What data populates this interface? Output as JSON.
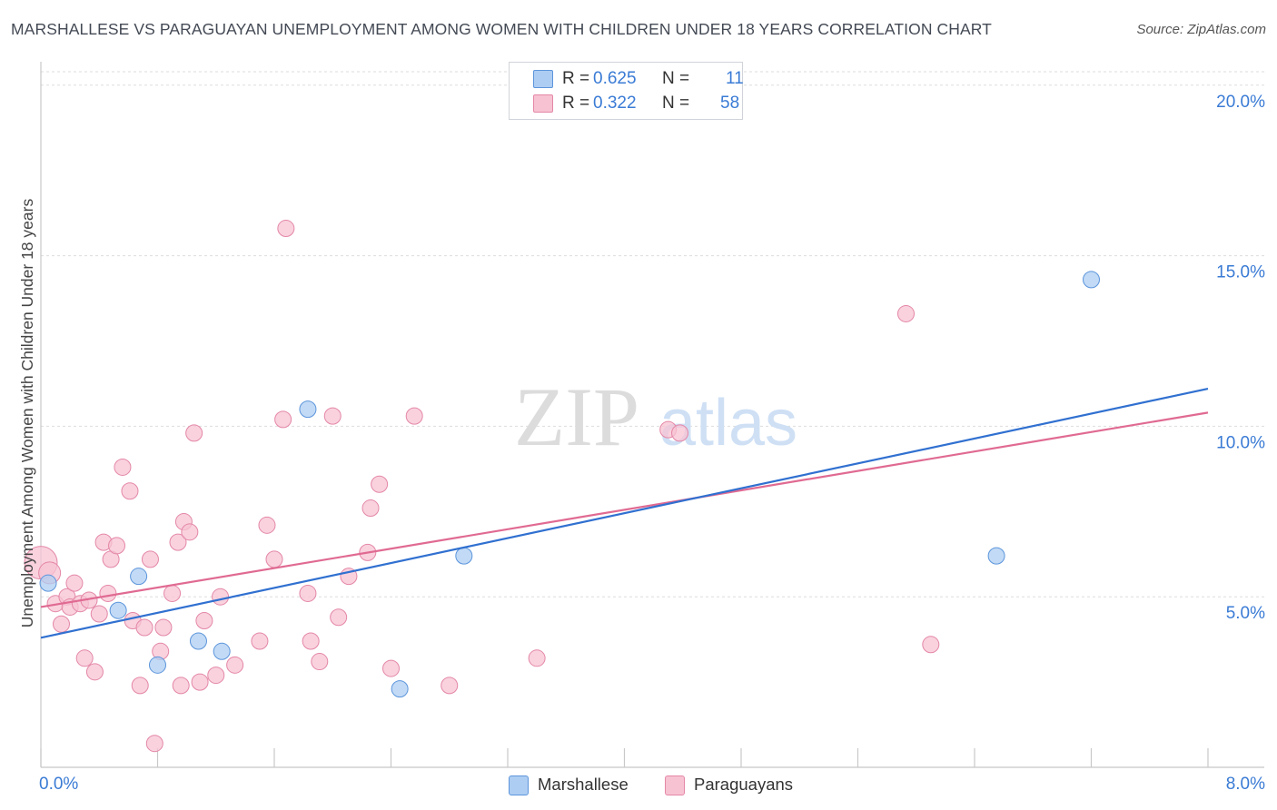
{
  "header": {
    "title": "MARSHALLESE VS PARAGUAYAN UNEMPLOYMENT AMONG WOMEN WITH CHILDREN UNDER 18 YEARS CORRELATION CHART",
    "source": "Source: ZipAtlas.com"
  },
  "watermark": {
    "zip": "ZIP",
    "atlas": "atlas"
  },
  "legend": {
    "rows": [
      {
        "r_label": "R = ",
        "r_value": "0.625",
        "n_label": "N = ",
        "n_value": "11",
        "series": "Marshallese"
      },
      {
        "r_label": "R = ",
        "r_value": "0.322",
        "n_label": "N = ",
        "n_value": "58",
        "series": "Paraguayans"
      }
    ]
  },
  "bottom_legend": {
    "items": [
      "Marshallese",
      "Paraguayans"
    ]
  },
  "colors": {
    "marshallese_fill": "#aecdf2",
    "marshallese_stroke": "#5c95dc",
    "marshallese_line": "#3070d0",
    "paraguayan_fill": "#f7c3d3",
    "paraguayan_stroke": "#e487a6",
    "paraguayan_line": "#e06a92",
    "axis_label": "#3a7bd5",
    "grid": "#dddddd"
  },
  "chart_data": {
    "type": "scatter",
    "title": "MARSHALLESE VS PARAGUAYAN UNEMPLOYMENT AMONG WOMEN WITH CHILDREN UNDER 18 YEARS CORRELATION CHART",
    "xlabel": "",
    "ylabel": "Unemployment Among Women with Children Under 18 years",
    "xlim": [
      0,
      8
    ],
    "ylim": [
      0,
      20.5
    ],
    "x_tick_labels": [
      "0.0%",
      "8.0%"
    ],
    "y_ticks": [
      5,
      10,
      15,
      20
    ],
    "y_tick_labels": [
      "5.0%",
      "10.0%",
      "15.0%",
      "20.0%"
    ],
    "grid": true,
    "series": [
      {
        "name": "Marshallese",
        "r": 0.625,
        "n": 11,
        "trend": {
          "x": [
            0,
            8
          ],
          "y": [
            3.8,
            11.1
          ]
        },
        "points": [
          {
            "x": 0.05,
            "y": 5.4
          },
          {
            "x": 0.53,
            "y": 4.6
          },
          {
            "x": 0.67,
            "y": 5.6
          },
          {
            "x": 0.8,
            "y": 3.0
          },
          {
            "x": 1.08,
            "y": 3.7
          },
          {
            "x": 1.24,
            "y": 3.4
          },
          {
            "x": 1.83,
            "y": 10.5
          },
          {
            "x": 2.46,
            "y": 2.3
          },
          {
            "x": 2.9,
            "y": 6.2
          },
          {
            "x": 6.55,
            "y": 6.2
          },
          {
            "x": 7.2,
            "y": 14.3
          }
        ]
      },
      {
        "name": "Paraguayans",
        "r": 0.322,
        "n": 58,
        "trend": {
          "x": [
            0,
            8
          ],
          "y": [
            4.7,
            10.4
          ]
        },
        "points": [
          {
            "x": 0.0,
            "y": 6.0
          },
          {
            "x": 0.06,
            "y": 5.7
          },
          {
            "x": 0.1,
            "y": 4.8
          },
          {
            "x": 0.14,
            "y": 4.2
          },
          {
            "x": 0.18,
            "y": 5.0
          },
          {
            "x": 0.2,
            "y": 4.7
          },
          {
            "x": 0.23,
            "y": 5.4
          },
          {
            "x": 0.27,
            "y": 4.8
          },
          {
            "x": 0.3,
            "y": 3.2
          },
          {
            "x": 0.33,
            "y": 4.9
          },
          {
            "x": 0.37,
            "y": 2.8
          },
          {
            "x": 0.4,
            "y": 4.5
          },
          {
            "x": 0.43,
            "y": 6.6
          },
          {
            "x": 0.46,
            "y": 5.1
          },
          {
            "x": 0.48,
            "y": 6.1
          },
          {
            "x": 0.52,
            "y": 6.5
          },
          {
            "x": 0.56,
            "y": 8.8
          },
          {
            "x": 0.61,
            "y": 8.1
          },
          {
            "x": 0.63,
            "y": 4.3
          },
          {
            "x": 0.68,
            "y": 2.4
          },
          {
            "x": 0.71,
            "y": 4.1
          },
          {
            "x": 0.75,
            "y": 6.1
          },
          {
            "x": 0.78,
            "y": 0.7
          },
          {
            "x": 0.82,
            "y": 3.4
          },
          {
            "x": 0.84,
            "y": 4.1
          },
          {
            "x": 0.9,
            "y": 5.1
          },
          {
            "x": 0.94,
            "y": 6.6
          },
          {
            "x": 0.96,
            "y": 2.4
          },
          {
            "x": 0.98,
            "y": 7.2
          },
          {
            "x": 1.02,
            "y": 6.9
          },
          {
            "x": 1.05,
            "y": 9.8
          },
          {
            "x": 1.09,
            "y": 2.5
          },
          {
            "x": 1.12,
            "y": 4.3
          },
          {
            "x": 1.2,
            "y": 2.7
          },
          {
            "x": 1.23,
            "y": 5.0
          },
          {
            "x": 1.33,
            "y": 3.0
          },
          {
            "x": 1.5,
            "y": 3.7
          },
          {
            "x": 1.55,
            "y": 7.1
          },
          {
            "x": 1.6,
            "y": 6.1
          },
          {
            "x": 1.66,
            "y": 10.2
          },
          {
            "x": 1.68,
            "y": 15.8
          },
          {
            "x": 1.83,
            "y": 5.1
          },
          {
            "x": 1.85,
            "y": 3.7
          },
          {
            "x": 1.91,
            "y": 3.1
          },
          {
            "x": 2.0,
            "y": 10.3
          },
          {
            "x": 2.04,
            "y": 4.4
          },
          {
            "x": 2.11,
            "y": 5.6
          },
          {
            "x": 2.24,
            "y": 6.3
          },
          {
            "x": 2.26,
            "y": 7.6
          },
          {
            "x": 2.32,
            "y": 8.3
          },
          {
            "x": 2.4,
            "y": 2.9
          },
          {
            "x": 2.56,
            "y": 10.3
          },
          {
            "x": 2.8,
            "y": 2.4
          },
          {
            "x": 3.4,
            "y": 3.2
          },
          {
            "x": 4.3,
            "y": 9.9
          },
          {
            "x": 4.38,
            "y": 9.8
          },
          {
            "x": 5.93,
            "y": 13.3
          },
          {
            "x": 6.1,
            "y": 3.6
          }
        ]
      }
    ]
  }
}
